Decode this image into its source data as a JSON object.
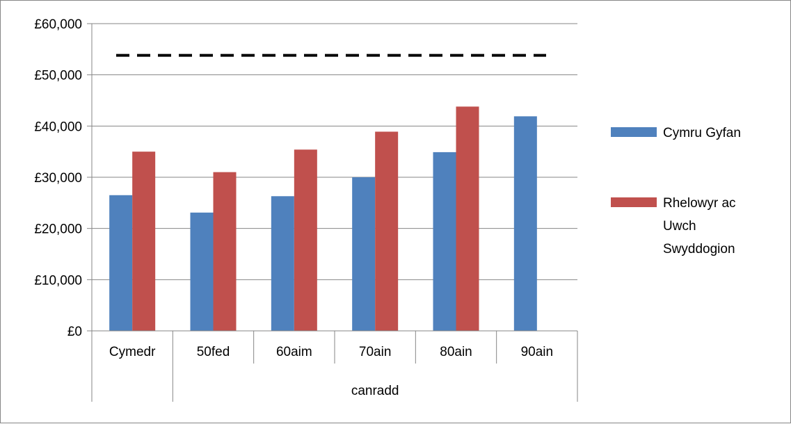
{
  "chart_data": {
    "type": "bar",
    "title": "",
    "xlabel": "",
    "ylabel": "",
    "categories": [
      "Cymedr",
      "50fed",
      "60aim",
      "70ain",
      "80ain",
      "90ain"
    ],
    "category_group": {
      "label": "canradd",
      "covers": [
        "50fed",
        "60aim",
        "70ain",
        "80ain",
        "90ain"
      ]
    },
    "series": [
      {
        "name": "Cymru Gyfan",
        "color": "#4F81BD",
        "values": [
          26500,
          23100,
          26300,
          30000,
          34900,
          41900
        ]
      },
      {
        "name": "Rhelowyr ac Uwch Swyddogion",
        "color": "#C0504D",
        "values": [
          35000,
          31000,
          35400,
          38900,
          43800,
          null
        ]
      }
    ],
    "reference_line": {
      "value": 53800,
      "style": "dashed",
      "color": "#000000"
    },
    "ylim": [
      0,
      60000
    ],
    "y_ticks": [
      0,
      10000,
      20000,
      30000,
      40000,
      50000,
      60000
    ],
    "y_tick_labels": [
      "£0",
      "£10,000",
      "£20,000",
      "£30,000",
      "£40,000",
      "£50,000",
      "£60,000"
    ],
    "grid": true,
    "legend_position": "right",
    "legend_lines": [
      [
        "Cymru Gyfan"
      ],
      [
        "Rhelowyr ac",
        "Uwch",
        "Swyddogion"
      ]
    ]
  }
}
